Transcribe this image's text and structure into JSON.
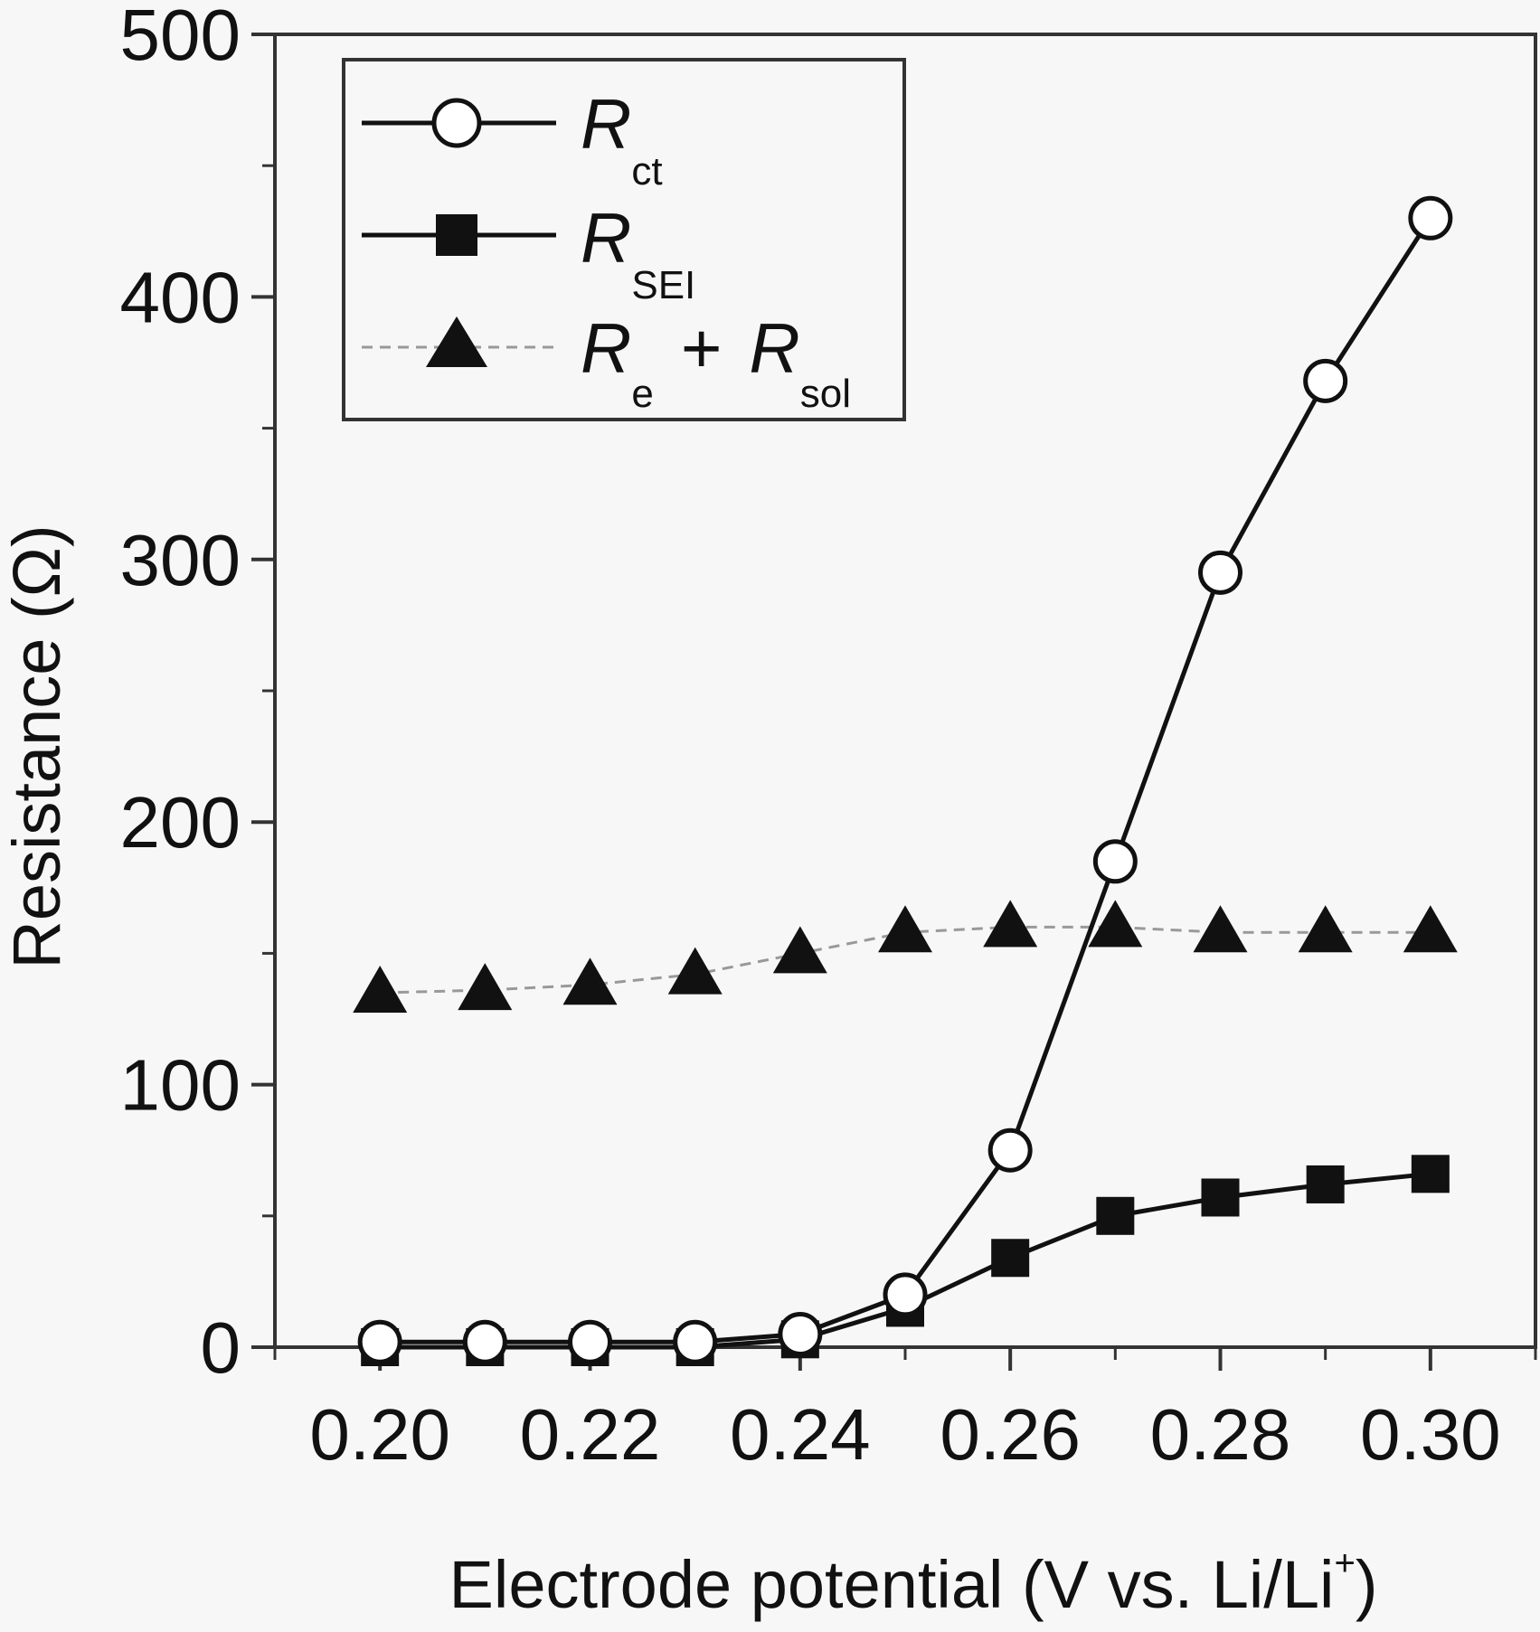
{
  "chart_data": {
    "type": "line",
    "xlabel": "Electrode potential (V vs. Li/Li",
    "xlabel_sup": "+",
    "xlabel_close": ")",
    "ylabel": "Resistance (Ω)",
    "xlim": [
      0.19,
      0.31
    ],
    "ylim": [
      0,
      500
    ],
    "x_ticks": [
      "0.20",
      "0.22",
      "0.24",
      "0.26",
      "0.28",
      "0.30"
    ],
    "y_ticks": [
      "0",
      "100",
      "200",
      "300",
      "400",
      "500"
    ],
    "grid": false,
    "legend_position": "top-left",
    "x": [
      0.2,
      0.21,
      0.22,
      0.23,
      0.24,
      0.25,
      0.26,
      0.27,
      0.28,
      0.29,
      0.3
    ],
    "series": [
      {
        "name": "R",
        "name_sub": "ct",
        "marker": "open-circle",
        "line": "solid",
        "color": "#111111",
        "values": [
          2,
          2,
          2,
          2,
          5,
          20,
          75,
          185,
          295,
          368,
          430
        ]
      },
      {
        "name": "R",
        "name_sub": "SEI",
        "marker": "filled-square",
        "line": "solid",
        "color": "#111111",
        "values": [
          0,
          0,
          0,
          0,
          3,
          15,
          34,
          50,
          57,
          62,
          66
        ]
      },
      {
        "name": "R",
        "name_sub": "e",
        "name_plus": "+",
        "name2": "R",
        "name2_sub": "sol",
        "marker": "filled-triangle",
        "line": "dashed",
        "color": "#999999",
        "values": [
          135,
          136,
          138,
          142,
          150,
          158,
          160,
          160,
          158,
          158,
          158
        ]
      }
    ]
  }
}
